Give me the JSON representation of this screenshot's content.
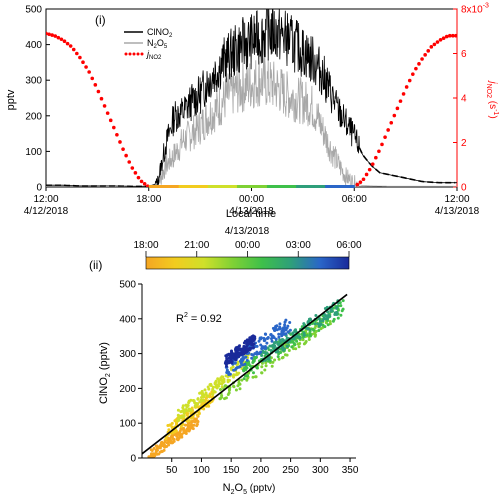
{
  "colors": {
    "clno2": "#000000",
    "n2o5": "#a8a8a8",
    "jno2": "#ff0000",
    "axis": "#000000",
    "right_axis": "#ff0000",
    "fit": "#000000",
    "cb_stops": [
      "#f5a623",
      "#f2cc1f",
      "#cfe02a",
      "#7fd135",
      "#3fc04a",
      "#2e9f7a",
      "#2a66c8",
      "#1a2a9a"
    ]
  },
  "chart_data": [
    {
      "type": "line",
      "panel_label": "(i)",
      "xlabel": "Local time",
      "ylabel": "pptv",
      "ylabel_right_main": "j",
      "ylabel_right_sub": "NO2",
      "ylabel_right_unit": "(s",
      "ylabel_right_exp": "-1",
      "ylabel_right_close": ")",
      "ylim": [
        0,
        500
      ],
      "yticks": [
        0,
        100,
        200,
        300,
        400,
        500
      ],
      "ylim_right": [
        0,
        0.008
      ],
      "yticks_right": [
        "0",
        "2",
        "4",
        "6",
        "8x10"
      ],
      "yright_exp": "-3",
      "x_range_hours": [
        0,
        24
      ],
      "xticks": [
        {
          "h": 0,
          "label": "12:00",
          "date": "4/12/2018"
        },
        {
          "h": 6,
          "label": "18:00",
          "date": ""
        },
        {
          "h": 12,
          "label": "00:00",
          "date": "4/13/2018"
        },
        {
          "h": 18,
          "label": "06:00",
          "date": ""
        },
        {
          "h": 24,
          "label": "12:00",
          "date": "4/13/2018"
        }
      ],
      "legend": [
        {
          "key": "clno2",
          "main": "ClNO",
          "sub": "2",
          "style": "solid"
        },
        {
          "key": "n2o5",
          "main": "N",
          "sub": "2",
          "main2": "O",
          "sub2": "5",
          "style": "solid"
        },
        {
          "key": "jno2",
          "main": "j",
          "sub": "NO2",
          "style": "dotted"
        }
      ],
      "series": [
        {
          "name": "ClNO2",
          "axis": "left",
          "x_hours": [
            0,
            1,
            2,
            3,
            4,
            5,
            6,
            6.5,
            7,
            7.5,
            8,
            8.5,
            9,
            9.5,
            10,
            10.5,
            11,
            11.5,
            12,
            12.5,
            13,
            13.5,
            14,
            14.5,
            15,
            15.5,
            16,
            16.5,
            17,
            17.5,
            18,
            18.5,
            19,
            19.5,
            20,
            21,
            22,
            23,
            24
          ],
          "y": [
            5,
            5,
            3,
            3,
            3,
            2,
            2,
            10,
            120,
            200,
            210,
            240,
            260,
            300,
            330,
            360,
            380,
            400,
            410,
            420,
            440,
            430,
            420,
            400,
            380,
            360,
            330,
            280,
            220,
            180,
            140,
            90,
            60,
            40,
            35,
            25,
            15,
            12,
            12
          ]
        },
        {
          "name": "N2O5",
          "axis": "left",
          "x_hours": [
            0,
            2,
            4,
            6,
            6.5,
            7,
            7.5,
            8,
            8.5,
            9,
            9.5,
            10,
            10.5,
            11,
            11.5,
            12,
            12.5,
            13,
            13.5,
            14,
            14.5,
            15,
            15.5,
            16,
            16.5,
            17,
            17.5,
            18,
            18.5,
            19,
            20,
            22,
            24
          ],
          "y": [
            2,
            2,
            1,
            1,
            5,
            60,
            90,
            130,
            150,
            170,
            200,
            220,
            250,
            270,
            280,
            290,
            300,
            290,
            280,
            260,
            250,
            240,
            230,
            180,
            120,
            70,
            30,
            10,
            4,
            3,
            2,
            2,
            2
          ]
        },
        {
          "name": "jNO2",
          "axis": "right",
          "x_hours": [
            0,
            0.5,
            1,
            1.5,
            2,
            2.5,
            3,
            3.5,
            4,
            4.5,
            5,
            5.5,
            6,
            18,
            18.5,
            19,
            19.5,
            20,
            20.5,
            21,
            21.5,
            22,
            22.5,
            23,
            23.5,
            24
          ],
          "y": [
            0.0069,
            0.0068,
            0.0066,
            0.0063,
            0.0058,
            0.0052,
            0.0044,
            0.0035,
            0.0026,
            0.0017,
            0.0009,
            0.0003,
            0.0,
            0.0,
            0.0003,
            0.0009,
            0.0017,
            0.0026,
            0.0035,
            0.0044,
            0.0052,
            0.0058,
            0.0063,
            0.0066,
            0.0068,
            0.0068
          ]
        }
      ]
    },
    {
      "type": "scatter",
      "panel_label": "(ii)",
      "xlabel_main": "N",
      "xlabel_sub1": "2",
      "xlabel_mid": "O",
      "xlabel_sub2": "5",
      "xlabel_unit": "(pptv)",
      "ylabel_main": "ClNO",
      "ylabel_sub": "2",
      "ylabel_unit": "(pptv)",
      "xlim": [
        0,
        360
      ],
      "ylim": [
        0,
        500
      ],
      "xticks": [
        50,
        100,
        150,
        200,
        250,
        300,
        350
      ],
      "yticks": [
        0,
        100,
        200,
        300,
        400,
        500
      ],
      "annotation_main": "R",
      "annotation_sup": "2",
      "annotation_rest": " = 0.92",
      "fit_line": {
        "x": [
          0,
          345
        ],
        "y": [
          12,
          470
        ]
      },
      "colorbar": {
        "date": "4/13/2018",
        "ticks": [
          "18:00",
          "21:00",
          "00:00",
          "03:00",
          "06:00"
        ]
      },
      "clusters": [
        {
          "time": "18:00",
          "color": "#f5a623",
          "x_range": [
            10,
            95
          ],
          "slope": 1.25,
          "offset": -10,
          "spread": 15
        },
        {
          "time": "19:30",
          "color": "#f2cc1f",
          "x_range": [
            40,
            120
          ],
          "slope": 1.3,
          "offset": 20,
          "spread": 18
        },
        {
          "time": "21:00",
          "color": "#cfe02a",
          "x_range": [
            60,
            180
          ],
          "slope": 1.35,
          "offset": 40,
          "spread": 18
        },
        {
          "time": "22:30",
          "color": "#7fd135",
          "x_range": [
            130,
            320
          ],
          "slope": 1.2,
          "offset": 20,
          "spread": 20
        },
        {
          "time": "00:00",
          "color": "#3fc04a",
          "x_range": [
            170,
            340
          ],
          "slope": 1.1,
          "offset": 60,
          "spread": 22
        },
        {
          "time": "01:30",
          "color": "#2e9f7a",
          "x_range": [
            200,
            330
          ],
          "slope": 1.15,
          "offset": 55,
          "spread": 20
        },
        {
          "time": "03:00",
          "color": "#2a66c8",
          "x_range": [
            140,
            250
          ],
          "slope": 1.25,
          "offset": 75,
          "spread": 22
        },
        {
          "time": "06:00",
          "color": "#1a2a9a",
          "x_range": [
            140,
            190
          ],
          "slope": 1.2,
          "offset": 110,
          "spread": 18
        }
      ]
    }
  ]
}
